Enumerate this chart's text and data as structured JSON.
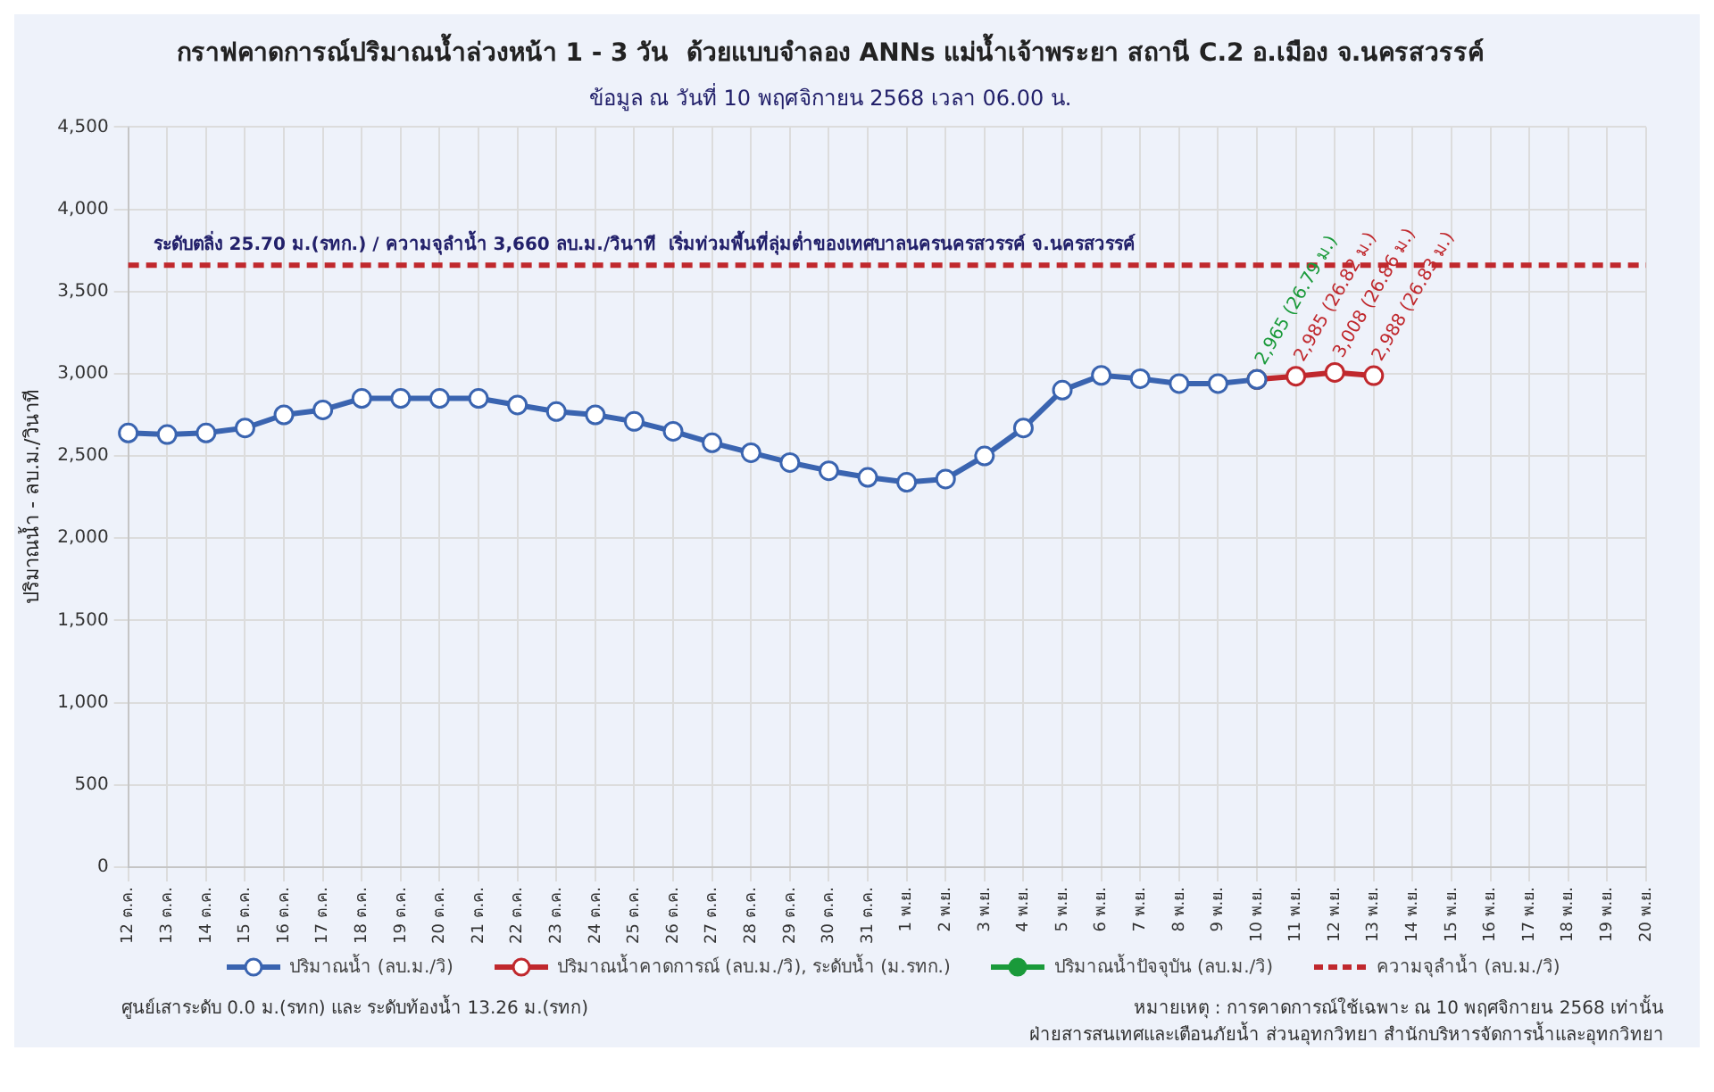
{
  "chart_data": {
    "type": "line",
    "title": "กราฟคาดการณ์ปริมาณน้ำล่วงหน้า 1 - 3 วัน  ด้วยแบบจำลอง ANNs แม่น้ำเจ้าพระยา สถานี C.2 อ.เมือง จ.นครสวรรค์",
    "subtitle": "ข้อมูล ณ วันที่ 10 พฤศจิกายน 2568 เวลา 06.00 น.",
    "ylabel": "ปริมาณน้ำ - ลบ.ม./วินาที",
    "categories": [
      "12 ต.ค.",
      "13 ต.ค.",
      "14 ต.ค.",
      "15 ต.ค.",
      "16 ต.ค.",
      "17 ต.ค.",
      "18 ต.ค.",
      "19 ต.ค.",
      "20 ต.ค.",
      "21 ต.ค.",
      "22 ต.ค.",
      "23 ต.ค.",
      "24 ต.ค.",
      "25 ต.ค.",
      "26 ต.ค.",
      "27 ต.ค.",
      "28 ต.ค.",
      "29 ต.ค.",
      "30 ต.ค.",
      "31 ต.ค.",
      "1 พ.ย.",
      "2 พ.ย.",
      "3 พ.ย.",
      "4 พ.ย.",
      "5 พ.ย.",
      "6 พ.ย.",
      "7 พ.ย.",
      "8 พ.ย.",
      "9 พ.ย.",
      "10 พ.ย.",
      "11 พ.ย.",
      "12 พ.ย.",
      "13 พ.ย.",
      "14 พ.ย.",
      "15 พ.ย.",
      "16 พ.ย.",
      "17 พ.ย.",
      "18 พ.ย.",
      "19 พ.ย.",
      "20 พ.ย."
    ],
    "series": [
      {
        "name": "ปริมาณน้ำ (ลบ.ม./วิ)",
        "color": "#3a64b0",
        "values": [
          2640,
          2630,
          2640,
          2670,
          2750,
          2780,
          2850,
          2850,
          2850,
          2850,
          2810,
          2770,
          2750,
          2710,
          2650,
          2580,
          2520,
          2460,
          2410,
          2370,
          2340,
          2360,
          2500,
          2670,
          2900,
          2990,
          2970,
          2940,
          2940,
          2965,
          null,
          null,
          null,
          null,
          null,
          null,
          null,
          null,
          null,
          null
        ]
      },
      {
        "name": "ปริมาณน้ำคาดการณ์ (ลบ.ม./วิ), ระดับน้ำ (ม.รทก.)",
        "color": "#c0282d",
        "values": [
          null,
          null,
          null,
          null,
          null,
          null,
          null,
          null,
          null,
          null,
          null,
          null,
          null,
          null,
          null,
          null,
          null,
          null,
          null,
          null,
          null,
          null,
          null,
          null,
          null,
          null,
          null,
          null,
          null,
          2965,
          2985,
          3008,
          2988,
          null,
          null,
          null,
          null,
          null,
          null,
          null
        ],
        "value_labels": [
          null,
          null,
          null,
          null,
          null,
          null,
          null,
          null,
          null,
          null,
          null,
          null,
          null,
          null,
          null,
          null,
          null,
          null,
          null,
          null,
          null,
          null,
          null,
          null,
          null,
          null,
          null,
          null,
          null,
          null,
          "2,985 (26.82 ม.)",
          "3,008 (26.86 ม.)",
          "2,988 (26.83 ม.)",
          null,
          null,
          null,
          null,
          null,
          null,
          null
        ]
      },
      {
        "name": "ปริมาณน้ำปัจจุบัน (ลบ.ม./วิ)",
        "color": "#1a9a3a",
        "values": [
          null,
          null,
          null,
          null,
          null,
          null,
          null,
          null,
          null,
          null,
          null,
          null,
          null,
          null,
          null,
          null,
          null,
          null,
          null,
          null,
          null,
          null,
          null,
          null,
          null,
          null,
          null,
          null,
          null,
          2965,
          null,
          null,
          null,
          null,
          null,
          null,
          null,
          null,
          null,
          null
        ],
        "value_labels": [
          null,
          null,
          null,
          null,
          null,
          null,
          null,
          null,
          null,
          null,
          null,
          null,
          null,
          null,
          null,
          null,
          null,
          null,
          null,
          null,
          null,
          null,
          null,
          null,
          null,
          null,
          null,
          null,
          null,
          "2,965 (26.79 ม.)",
          null,
          null,
          null,
          null,
          null,
          null,
          null,
          null,
          null,
          null
        ]
      },
      {
        "name": "ความจุลำน้ำ (ลบ.ม./วิ)",
        "color": "#c0282d",
        "marker": "none",
        "line_style": "dashed",
        "values": [
          3660,
          3660,
          3660,
          3660,
          3660,
          3660,
          3660,
          3660,
          3660,
          3660,
          3660,
          3660,
          3660,
          3660,
          3660,
          3660,
          3660,
          3660,
          3660,
          3660,
          3660,
          3660,
          3660,
          3660,
          3660,
          3660,
          3660,
          3660,
          3660,
          3660,
          3660,
          3660,
          3660,
          3660,
          3660,
          3660,
          3660,
          3660,
          3660,
          3660
        ]
      }
    ],
    "ylim": [
      0,
      4500
    ],
    "yticks": [
      {
        "value": 0,
        "label": "0"
      },
      {
        "value": 500,
        "label": "500"
      },
      {
        "value": 1000,
        "label": "1,000"
      },
      {
        "value": 1500,
        "label": "1,500"
      },
      {
        "value": 2000,
        "label": "2,000"
      },
      {
        "value": 2500,
        "label": "2,500"
      },
      {
        "value": 3000,
        "label": "3,000"
      },
      {
        "value": 3500,
        "label": "3,500"
      },
      {
        "value": 4000,
        "label": "4,000"
      },
      {
        "value": 4500,
        "label": "4,500"
      }
    ],
    "grid": true,
    "legend": "bottom",
    "marker": "circle",
    "line_style": "solid",
    "annotations": [
      {
        "text": "ระดับตลิ่ง 25.70 ม.(รทก.) / ความจุลำน้ำ 3,660 ลบ.ม./วินาที  เริ่มท่วมพื้นที่ลุ่มต่ำของเทศบาลนครนครสวรรค์ จ.นครสวรรค์",
        "y": 3660
      },
      "ศูนย์เสาระดับ 0.0 ม.(รทก) และ ระดับท้องน้ำ 13.26 ม.(รทก)",
      "หมายเหตุ : การคาดการณ์ใช้เฉพาะ ณ 10 พฤศจิกายน 2568 เท่านั้น",
      "ฝ่ายสารสนเทศและเตือนภัยน้ำ ส่วนอุทกวิทยา สำนักบริหารจัดการน้ำและอุทกวิทยา"
    ]
  }
}
